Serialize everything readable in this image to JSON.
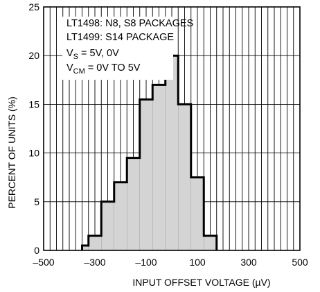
{
  "chart_data": {
    "type": "bar",
    "title": "",
    "xlabel": "INPUT OFFSET VOLTAGE (µV)",
    "ylabel": "PERCENT OF UNITS (%)",
    "xlim": [
      -500,
      500
    ],
    "ylim": [
      0,
      25
    ],
    "grid": true,
    "x_ticks": [
      "-500",
      "-300",
      "-100",
      "100",
      "300",
      "500"
    ],
    "y_ticks": [
      "0",
      "5",
      "10",
      "15",
      "20",
      "25"
    ],
    "bin_width": 25,
    "bins": [
      {
        "x0": -350,
        "x1": -325,
        "value": 0.5
      },
      {
        "x0": -325,
        "x1": -300,
        "value": 1.5
      },
      {
        "x0": -300,
        "x1": -275,
        "value": 1.5
      },
      {
        "x0": -275,
        "x1": -250,
        "value": 5
      },
      {
        "x0": -250,
        "x1": -225,
        "value": 5
      },
      {
        "x0": -225,
        "x1": -200,
        "value": 7
      },
      {
        "x0": -200,
        "x1": -175,
        "value": 7
      },
      {
        "x0": -175,
        "x1": -150,
        "value": 9.5
      },
      {
        "x0": -150,
        "x1": -125,
        "value": 9.5
      },
      {
        "x0": -125,
        "x1": -100,
        "value": 15.5
      },
      {
        "x0": -100,
        "x1": -75,
        "value": 15.5
      },
      {
        "x0": -75,
        "x1": -50,
        "value": 17
      },
      {
        "x0": -50,
        "x1": -25,
        "value": 17
      },
      {
        "x0": -25,
        "x1": 0,
        "value": 20
      },
      {
        "x0": 0,
        "x1": 25,
        "value": 20
      },
      {
        "x0": 25,
        "x1": 50,
        "value": 15
      },
      {
        "x0": 50,
        "x1": 75,
        "value": 15
      },
      {
        "x0": 75,
        "x1": 100,
        "value": 7.5
      },
      {
        "x0": 100,
        "x1": 125,
        "value": 7.5
      },
      {
        "x0": 125,
        "x1": 150,
        "value": 1.5
      },
      {
        "x0": 150,
        "x1": 175,
        "value": 1.5
      }
    ],
    "annotation": {
      "line1": "LT1498: N8, S8 PACKAGES",
      "line2": "LT1499: S14 PACKAGE",
      "line3_main": "V",
      "line3_sub": "S",
      "line3_rest": " = 5V, 0V",
      "line4_main": "V",
      "line4_sub": "CM",
      "line4_rest": " = 0V TO 5V"
    },
    "colors": {
      "bar_fill": "#d4d4d4",
      "bar_stroke": "#000000",
      "grid": "#000000",
      "background": "#ffffff"
    }
  }
}
